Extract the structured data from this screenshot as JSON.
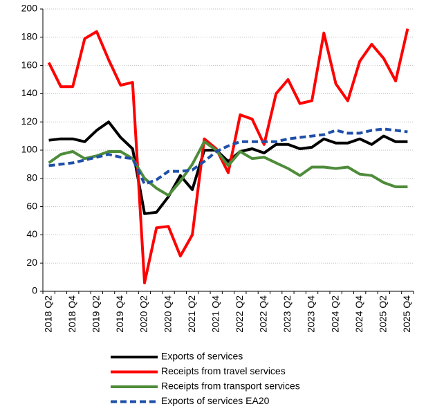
{
  "chart_data": {
    "type": "line",
    "categories": [
      "2018 Q2",
      null,
      "2018 Q4",
      null,
      "2019 Q2",
      null,
      "2019 Q4",
      null,
      "2020 Q2",
      null,
      "2020 Q4",
      null,
      "2021 Q2",
      null,
      "2021 Q4",
      null,
      "2022 Q2",
      null,
      "2022 Q4",
      null,
      "2023 Q2",
      null,
      "2023 Q4",
      null,
      "2024 Q2",
      null,
      "2024 Q4",
      null,
      "2025 Q2",
      null,
      "2025 Q4"
    ],
    "series": [
      {
        "name": "Exports of services",
        "color": "#000000",
        "dashed": false,
        "values": [
          107,
          108,
          108,
          106,
          114,
          120,
          109,
          101,
          55,
          56,
          67,
          82,
          72,
          100,
          100,
          92,
          99,
          101,
          98,
          104,
          104,
          101,
          102,
          108,
          105,
          105,
          108,
          104,
          110,
          106,
          106
        ]
      },
      {
        "name": "Receipts from travel services",
        "color": "#ff0000",
        "dashed": false,
        "values": [
          162,
          145,
          145,
          179,
          184,
          164,
          146,
          148,
          6,
          45,
          46,
          25,
          40,
          108,
          101,
          84,
          125,
          122,
          104,
          140,
          150,
          133,
          135,
          183,
          147,
          135,
          163,
          175,
          165,
          149,
          186
        ]
      },
      {
        "name": "Receipts from transport services",
        "color": "#4e8c3a",
        "dashed": false,
        "values": [
          91,
          97,
          99,
          94,
          96,
          99,
          99,
          94,
          80,
          73,
          68,
          78,
          90,
          106,
          100,
          89,
          99,
          94,
          95,
          91,
          87,
          82,
          88,
          88,
          87,
          88,
          83,
          82,
          77,
          74,
          74
        ]
      },
      {
        "name": "Exports of services EA20",
        "color": "#1f4fa8",
        "dashed": true,
        "values": [
          89,
          90,
          91,
          93,
          95,
          97,
          95,
          94,
          76,
          79,
          85,
          85,
          86,
          92,
          99,
          103,
          106,
          106,
          106,
          106,
          108,
          109,
          110,
          111,
          114,
          112,
          112,
          114,
          115,
          114,
          113
        ]
      }
    ],
    "ylim": [
      0,
      200
    ],
    "yticks": [
      0,
      20,
      40,
      60,
      80,
      100,
      120,
      140,
      160,
      180,
      200
    ],
    "grid": true
  }
}
